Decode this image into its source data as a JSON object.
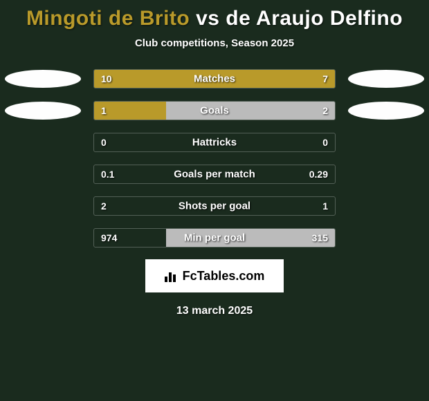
{
  "header": {
    "player1": "Mingoti de Brito",
    "vs": "vs",
    "player2": "de Araujo Delfino",
    "subtitle": "Club competitions, Season 2025"
  },
  "colors": {
    "background": "#1a2b1e",
    "player1_bar": "#b99a2a",
    "player2_bar": "#bbbbbb",
    "ellipse": "#fefefe",
    "text": "#ffffff"
  },
  "stats": [
    {
      "label": "Matches",
      "left_val": "10",
      "right_val": "7",
      "left_pct": 100,
      "right_pct": 0,
      "show_ellipse": true
    },
    {
      "label": "Goals",
      "left_val": "1",
      "right_val": "2",
      "left_pct": 30,
      "right_pct": 70,
      "show_ellipse": true
    },
    {
      "label": "Hattricks",
      "left_val": "0",
      "right_val": "0",
      "left_pct": 0,
      "right_pct": 0,
      "show_ellipse": false
    },
    {
      "label": "Goals per match",
      "left_val": "0.1",
      "right_val": "0.29",
      "left_pct": 0,
      "right_pct": 0,
      "show_ellipse": false
    },
    {
      "label": "Shots per goal",
      "left_val": "2",
      "right_val": "1",
      "left_pct": 0,
      "right_pct": 0,
      "show_ellipse": false
    },
    {
      "label": "Min per goal",
      "left_val": "974",
      "right_val": "315",
      "left_pct": 0,
      "right_pct": 70,
      "show_ellipse": false
    }
  ],
  "footer": {
    "brand": "FcTables.com",
    "date": "13 march 2025"
  }
}
